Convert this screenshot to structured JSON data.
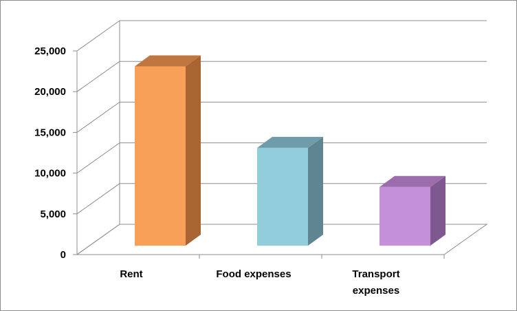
{
  "chart_data": {
    "type": "bar",
    "title": "",
    "xlabel": "",
    "ylabel": "",
    "categories": [
      [
        "Rent"
      ],
      [
        "Food expenses"
      ],
      [
        "Transport",
        "expenses"
      ]
    ],
    "values": [
      22000,
      12000,
      7200
    ],
    "ylim": [
      0,
      25000
    ],
    "yticks": [
      "0",
      "5,000",
      "10,000",
      "15,000",
      "20,000",
      "25,000"
    ],
    "grid": true,
    "legend": "none",
    "colors": {
      "front": [
        "#F9A058",
        "#92CDDC",
        "#C490D8"
      ],
      "top": [
        "#C0763F",
        "#6F9CAB",
        "#9B6DAD"
      ],
      "side": [
        "#A86532",
        "#5F8590",
        "#7E5990"
      ],
      "grid": "#8C8C8C"
    }
  }
}
